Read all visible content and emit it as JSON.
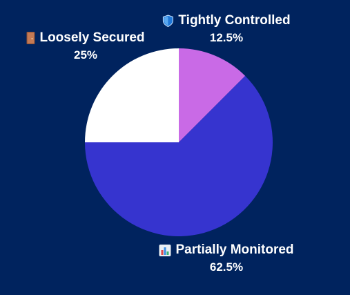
{
  "chart_data": {
    "type": "pie",
    "slices": [
      {
        "label": "Tightly Controlled",
        "value": 12.5,
        "percent_label": "12.5%",
        "color": "#c96ae6",
        "icon": "shield-icon"
      },
      {
        "label": "Partially Monitored",
        "value": 62.5,
        "percent_label": "62.5%",
        "color": "#3634cf",
        "icon": "bar-chart-icon"
      },
      {
        "label": "Loosely Secured",
        "value": 25,
        "percent_label": "25%",
        "color": "#ffffff",
        "icon": "door-icon"
      }
    ],
    "start_angle": "12 o'clock",
    "direction": "clockwise",
    "legend": "none"
  },
  "colors": {
    "background": "#00235e",
    "label_text": "#ffffff"
  }
}
